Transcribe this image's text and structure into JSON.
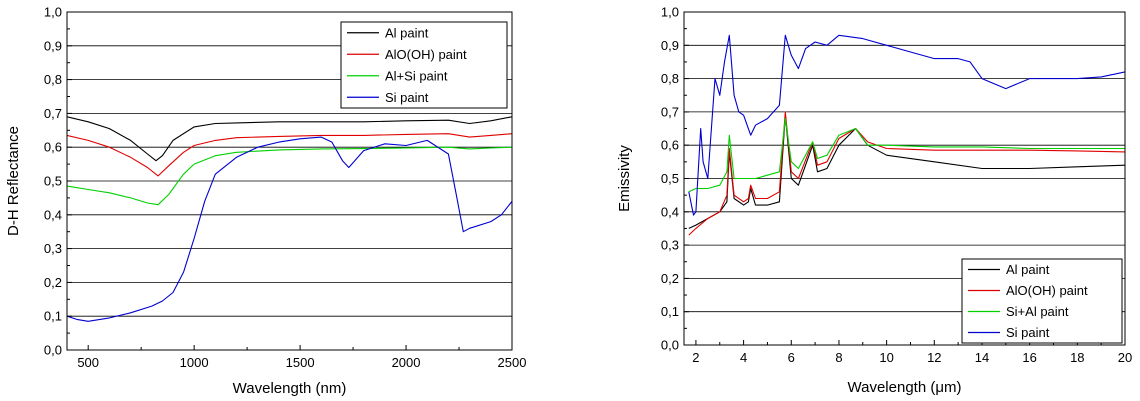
{
  "chart_data": [
    {
      "type": "line",
      "xlabel": "Wavelength (nm)",
      "ylabel": "D-H Reflectance",
      "xlim": [
        400,
        2500
      ],
      "ylim": [
        0.0,
        1.0
      ],
      "xticks": [
        500,
        1000,
        1500,
        2000,
        2500
      ],
      "yticks": [
        0.0,
        0.1,
        0.2,
        0.3,
        0.4,
        0.5,
        0.6,
        0.7,
        0.8,
        0.9,
        1.0
      ],
      "ytick_labels": [
        "0,0",
        "0,1",
        "0,2",
        "0,3",
        "0,4",
        "0,5",
        "0,6",
        "0,7",
        "0,8",
        "0,9",
        "1,0"
      ],
      "grid": "horizontal",
      "legend_position": "top-right",
      "series": [
        {
          "name": "Al paint",
          "color": "#000000",
          "x": [
            400,
            500,
            600,
            700,
            780,
            820,
            850,
            900,
            1000,
            1100,
            1200,
            1400,
            1600,
            1800,
            2000,
            2200,
            2300,
            2400,
            2500
          ],
          "y": [
            0.69,
            0.675,
            0.655,
            0.62,
            0.58,
            0.56,
            0.575,
            0.62,
            0.66,
            0.67,
            0.672,
            0.675,
            0.675,
            0.675,
            0.678,
            0.68,
            0.67,
            0.678,
            0.69
          ]
        },
        {
          "name": "AlO(OH) paint",
          "color": "#e00000",
          "x": [
            400,
            500,
            600,
            700,
            780,
            830,
            880,
            950,
            1000,
            1100,
            1200,
            1400,
            1600,
            1800,
            2000,
            2200,
            2300,
            2400,
            2500
          ],
          "y": [
            0.635,
            0.62,
            0.6,
            0.57,
            0.54,
            0.515,
            0.545,
            0.585,
            0.605,
            0.62,
            0.628,
            0.632,
            0.635,
            0.635,
            0.638,
            0.64,
            0.63,
            0.635,
            0.64
          ]
        },
        {
          "name": "Al+Si paint",
          "color": "#00d000",
          "x": [
            400,
            500,
            600,
            700,
            780,
            830,
            880,
            950,
            1000,
            1100,
            1200,
            1400,
            1600,
            1800,
            2000,
            2200,
            2300,
            2400,
            2500
          ],
          "y": [
            0.485,
            0.475,
            0.465,
            0.45,
            0.435,
            0.43,
            0.46,
            0.52,
            0.55,
            0.575,
            0.585,
            0.592,
            0.595,
            0.596,
            0.598,
            0.6,
            0.595,
            0.598,
            0.6
          ]
        },
        {
          "name": "Si paint",
          "color": "#0000d0",
          "x": [
            400,
            450,
            500,
            600,
            700,
            800,
            850,
            900,
            950,
            1000,
            1050,
            1100,
            1200,
            1300,
            1400,
            1500,
            1600,
            1650,
            1700,
            1730,
            1800,
            1900,
            2000,
            2100,
            2200,
            2240,
            2270,
            2300,
            2400,
            2450,
            2500
          ],
          "y": [
            0.1,
            0.09,
            0.085,
            0.095,
            0.11,
            0.13,
            0.145,
            0.17,
            0.23,
            0.33,
            0.44,
            0.52,
            0.57,
            0.6,
            0.615,
            0.625,
            0.63,
            0.615,
            0.56,
            0.54,
            0.59,
            0.61,
            0.605,
            0.62,
            0.58,
            0.45,
            0.35,
            0.36,
            0.38,
            0.4,
            0.44
          ]
        }
      ]
    },
    {
      "type": "line",
      "xlabel": "Wavelength (μm)",
      "ylabel": "Emissivity",
      "xlim": [
        1.5,
        20
      ],
      "ylim": [
        0.0,
        1.0
      ],
      "xticks": [
        2,
        4,
        6,
        8,
        10,
        12,
        14,
        16,
        18,
        20
      ],
      "yticks": [
        0.0,
        0.1,
        0.2,
        0.3,
        0.4,
        0.5,
        0.6,
        0.7,
        0.8,
        0.9,
        1.0
      ],
      "ytick_labels": [
        "0,0",
        "0,1",
        "0,2",
        "0,3",
        "0,4",
        "0,5",
        "0,6",
        "0,7",
        "0,8",
        "0,9",
        "1,0"
      ],
      "grid": "horizontal",
      "legend_position": "bottom-right",
      "series": [
        {
          "name": "Al paint",
          "color": "#000000",
          "x": [
            1.7,
            2.0,
            2.5,
            3.0,
            3.3,
            3.4,
            3.6,
            4.0,
            4.2,
            4.3,
            4.5,
            5.0,
            5.5,
            5.75,
            6.0,
            6.3,
            6.9,
            7.1,
            7.5,
            8.0,
            8.7,
            9.2,
            10.0,
            12.0,
            14.0,
            16.0,
            18.0,
            20.0
          ],
          "y": [
            0.35,
            0.36,
            0.38,
            0.4,
            0.43,
            0.58,
            0.44,
            0.42,
            0.43,
            0.47,
            0.42,
            0.42,
            0.43,
            0.69,
            0.5,
            0.48,
            0.6,
            0.52,
            0.53,
            0.6,
            0.65,
            0.6,
            0.57,
            0.55,
            0.53,
            0.53,
            0.535,
            0.54
          ]
        },
        {
          "name": "AlO(OH) paint",
          "color": "#e00000",
          "x": [
            1.7,
            2.0,
            2.5,
            3.0,
            3.3,
            3.4,
            3.6,
            4.0,
            4.2,
            4.3,
            4.5,
            5.0,
            5.5,
            5.75,
            6.0,
            6.3,
            6.9,
            7.1,
            7.5,
            8.0,
            8.7,
            9.2,
            10.0,
            12.0,
            14.0,
            16.0,
            18.0,
            20.0
          ],
          "y": [
            0.33,
            0.35,
            0.38,
            0.4,
            0.45,
            0.59,
            0.45,
            0.43,
            0.44,
            0.48,
            0.44,
            0.44,
            0.46,
            0.7,
            0.52,
            0.5,
            0.61,
            0.54,
            0.55,
            0.62,
            0.65,
            0.61,
            0.59,
            0.585,
            0.585,
            0.585,
            0.583,
            0.58
          ]
        },
        {
          "name": "Si+Al paint",
          "color": "#00d000",
          "x": [
            1.7,
            2.0,
            2.5,
            3.0,
            3.3,
            3.4,
            3.6,
            4.0,
            4.5,
            5.0,
            5.5,
            5.75,
            6.0,
            6.3,
            6.9,
            7.1,
            7.5,
            8.0,
            8.7,
            9.2,
            10.0,
            12.0,
            14.0,
            16.0,
            18.0,
            20.0
          ],
          "y": [
            0.46,
            0.47,
            0.47,
            0.48,
            0.52,
            0.63,
            0.5,
            0.5,
            0.5,
            0.51,
            0.52,
            0.68,
            0.55,
            0.53,
            0.61,
            0.56,
            0.57,
            0.63,
            0.65,
            0.6,
            0.6,
            0.595,
            0.595,
            0.59,
            0.59,
            0.59
          ]
        },
        {
          "name": "Si paint",
          "color": "#0000d0",
          "x": [
            1.7,
            1.9,
            2.0,
            2.2,
            2.3,
            2.5,
            2.8,
            3.0,
            3.2,
            3.4,
            3.6,
            3.8,
            4.0,
            4.3,
            4.5,
            5.0,
            5.5,
            5.75,
            6.0,
            6.3,
            6.6,
            7.0,
            7.5,
            8.0,
            9.0,
            10.0,
            11.0,
            12.0,
            13.0,
            13.5,
            14.0,
            15.0,
            16.0,
            17.0,
            18.0,
            19.0,
            20.0
          ],
          "y": [
            0.46,
            0.39,
            0.4,
            0.65,
            0.55,
            0.5,
            0.8,
            0.75,
            0.85,
            0.93,
            0.75,
            0.7,
            0.69,
            0.63,
            0.66,
            0.68,
            0.72,
            0.93,
            0.87,
            0.83,
            0.89,
            0.91,
            0.9,
            0.93,
            0.92,
            0.9,
            0.88,
            0.86,
            0.86,
            0.85,
            0.8,
            0.77,
            0.8,
            0.8,
            0.8,
            0.805,
            0.82
          ]
        }
      ]
    }
  ]
}
